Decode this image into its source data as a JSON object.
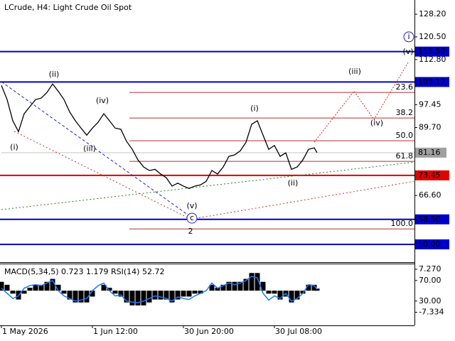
{
  "chart_data": [
    {
      "type": "line",
      "title": "LCrude, H4:  Light Crude Oil Spot",
      "x": [
        0,
        2,
        4,
        6,
        8,
        10,
        12,
        14,
        16,
        18,
        20,
        22,
        24,
        26,
        28,
        30,
        32,
        34,
        36,
        38,
        40,
        42,
        44,
        46,
        48,
        50,
        52,
        54,
        56,
        58,
        60,
        62,
        64,
        66,
        68,
        70,
        72,
        74,
        76,
        78,
        80,
        82,
        84,
        86,
        88,
        90,
        92,
        94,
        96,
        98,
        100,
        102,
        104,
        106,
        108,
        110,
        111
      ],
      "values": [
        104.0,
        99.2,
        92.0,
        88.3,
        94.4,
        96.8,
        99.2,
        99.7,
        101.6,
        104.5,
        102.0,
        99.2,
        95.0,
        92.0,
        89.5,
        87.1,
        89.5,
        91.5,
        94.4,
        92.0,
        89.5,
        89.1,
        85.0,
        82.3,
        78.7,
        76.3,
        75.1,
        75.5,
        73.9,
        72.6,
        69.8,
        70.8,
        69.8,
        69.0,
        69.8,
        70.2,
        71.4,
        75.1,
        73.9,
        76.3,
        79.9,
        80.4,
        81.8,
        84.7,
        90.8,
        92.0,
        87.1,
        82.3,
        83.6,
        79.9,
        81.1,
        75.5,
        76.3,
        78.7,
        82.3,
        82.8,
        81.16
      ],
      "color": "#000000",
      "xlim": [
        0,
        145.25
      ],
      "ylim": [
        44.2,
        132.55
      ],
      "yticks": [
        {
          "value": 128.2,
          "label": "128.20"
        },
        {
          "value": 120.5,
          "label": "120.50"
        },
        {
          "value": 112.8,
          "label": "112.80"
        },
        {
          "value": 97.45,
          "label": "97.45"
        },
        {
          "value": 89.7,
          "label": "89.70"
        },
        {
          "value": 66.6,
          "label": "66.60"
        }
      ],
      "levels": [
        {
          "value": 115.5,
          "label": "115.50",
          "color": "#0000c8"
        },
        {
          "value": 105.17,
          "label": "105.17",
          "color": "#0000c8"
        },
        {
          "value": 73.45,
          "label": "73.45",
          "color": "#e00000"
        },
        {
          "value": 58.5,
          "label": "58.50",
          "color": "#0000c8"
        },
        {
          "value": 50.0,
          "label": "50.00",
          "color": "#0000c8"
        }
      ],
      "last": {
        "value": 81.16,
        "label": "81.16",
        "color": "#a0a0a0"
      },
      "fib_levels": [
        {
          "value": 101.63,
          "label": "23.6"
        },
        {
          "value": 92.93,
          "label": "38.2"
        },
        {
          "value": 85.2,
          "label": "50.0"
        },
        {
          "value": 78.2,
          "label": "61.8"
        },
        {
          "value": 55.25,
          "label": "100.0"
        }
      ],
      "fib_color": "#b03030",
      "trendlines": [
        {
          "color": "#2020d0",
          "dash": "4 3",
          "x": [
            0,
            66.5
          ],
          "values": [
            105.25,
            59.4
          ]
        },
        {
          "color": "#d03030",
          "dash": "2 3",
          "x": [
            4.5,
            66.5
          ],
          "values": [
            88.4,
            58.6
          ]
        },
        {
          "color": "#d03030",
          "dash": "2 3",
          "x": [
            67,
            145
          ],
          "values": [
            58.6,
            71.4
          ]
        },
        {
          "color": "#208020",
          "dash": "2 3",
          "x": [
            0,
            145.25
          ],
          "values": [
            61.8,
            77.96
          ]
        }
      ],
      "forecast": {
        "color": "#e02020",
        "x": [
          110,
          124,
          131,
          143
        ],
        "values": [
          84.7,
          102.1,
          92.4,
          111.8
        ]
      },
      "annotations": [
        {
          "text": "(i)",
          "color": "#c02020",
          "x": 4.5,
          "y": 83.0,
          "circled": false
        },
        {
          "text": "(ii)",
          "color": "#c02020",
          "x": 18.5,
          "y": 107.7,
          "circled": false
        },
        {
          "text": "(iii)",
          "color": "#c02020",
          "x": 31,
          "y": 82.5,
          "circled": false
        },
        {
          "text": "(iv)",
          "color": "#c02020",
          "x": 35.5,
          "y": 98.7,
          "circled": false
        },
        {
          "text": "(v)",
          "color": "#c02020",
          "x": 67,
          "y": 63.0,
          "circled": false
        },
        {
          "text": "2",
          "color": "#c02020",
          "x": 66.5,
          "y": 54.3,
          "circled": false
        },
        {
          "text": "(i)",
          "color": "#c02020",
          "x": 89,
          "y": 96.1,
          "circled": false
        },
        {
          "text": "(ii)",
          "color": "#c02020",
          "x": 102.5,
          "y": 70.7,
          "circled": false
        },
        {
          "text": "(iii)",
          "color": "#c02020",
          "x": 124.25,
          "y": 108.6,
          "circled": false
        },
        {
          "text": "(iv)",
          "color": "#c02020",
          "x": 132,
          "y": 91.2,
          "circled": false
        },
        {
          "text": "(v)",
          "color": "#c02020",
          "x": 143,
          "y": 115.4,
          "circled": false
        },
        {
          "text": "c",
          "color": "#2020d0",
          "x": 67,
          "y": 58.9,
          "circled": true
        },
        {
          "text": "i",
          "color": "#2020d0",
          "x": 143.25,
          "y": 120.5,
          "circled": true
        }
      ]
    },
    {
      "type": "bar",
      "title": "MACD(5,34,5) 0.723 1.179 RSI(14) 52.72",
      "x": [
        0,
        2,
        4,
        6,
        8,
        10,
        12,
        14,
        16,
        18,
        20,
        22,
        24,
        26,
        28,
        30,
        32,
        34,
        36,
        38,
        40,
        42,
        44,
        46,
        48,
        50,
        52,
        54,
        56,
        58,
        60,
        62,
        64,
        66,
        68,
        70,
        72,
        74,
        76,
        78,
        80,
        82,
        84,
        86,
        88,
        90,
        92,
        94,
        96,
        98,
        100,
        102,
        104,
        106,
        108,
        110,
        111
      ],
      "xlim": [
        0,
        145.25
      ],
      "series": [
        {
          "color": "#000000",
          "values": [
            3,
            2,
            -1,
            -3,
            -1,
            1,
            2,
            2,
            3,
            4,
            2,
            -1,
            -3,
            -4,
            -4,
            -4,
            -2,
            0,
            2,
            1,
            -1,
            -2,
            -4,
            -5,
            -5,
            -5,
            -4,
            -3,
            -3,
            -3,
            -4,
            -3,
            -2,
            -2,
            -1,
            -1,
            0,
            2,
            1,
            2,
            3,
            3,
            3,
            4,
            6,
            6,
            3,
            -1,
            -1,
            -3,
            -2,
            -4,
            -3,
            -1,
            2,
            2,
            0.723
          ]
        },
        {
          "color": "#1e78ff",
          "axis": "y2",
          "values": [
            55,
            45,
            35,
            40,
            55,
            60,
            62,
            60,
            65,
            70,
            50,
            40,
            35,
            30,
            32,
            35,
            50,
            60,
            65,
            50,
            40,
            42,
            30,
            28,
            27,
            30,
            35,
            40,
            38,
            35,
            30,
            38,
            35,
            33,
            40,
            45,
            50,
            65,
            55,
            60,
            65,
            62,
            65,
            70,
            78,
            75,
            45,
            32,
            40,
            35,
            45,
            30,
            35,
            45,
            62,
            60,
            52.72
          ]
        }
      ],
      "ylim": [
        -11.78,
        8.96
      ],
      "yticks": [
        {
          "value": 7.27,
          "label": "7.270"
        },
        {
          "value": -7.334,
          "label": "-7.334"
        }
      ],
      "y2lim": [
        -17.3,
        101.5
      ],
      "y2ticks": [
        {
          "value": 70,
          "label": "70.00"
        },
        {
          "value": 30,
          "label": "30.00"
        }
      ],
      "xticks": [
        {
          "value": 0,
          "label": "1 May 2026"
        },
        {
          "value": 32,
          "label": "1 Jun 12:00"
        },
        {
          "value": 64,
          "label": "30 Jun 20:00"
        },
        {
          "value": 96,
          "label": "30 Jul 08:00"
        }
      ]
    }
  ]
}
